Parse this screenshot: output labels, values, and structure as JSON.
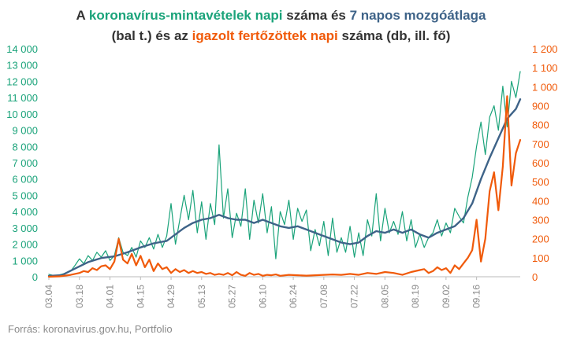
{
  "title": {
    "line1": [
      {
        "text": "A ",
        "color": ""
      },
      {
        "text": "koronavírus-mintavételek napi",
        "color": "green"
      },
      {
        "text": " száma és ",
        "color": ""
      },
      {
        "text": "7 napos mozgóátlaga",
        "color": "blue"
      }
    ],
    "line2": [
      {
        "text": "(bal t.) és az ",
        "color": ""
      },
      {
        "text": "igazolt fertőzöttek napi",
        "color": "orange"
      },
      {
        "text": " száma (db, ill. fő)",
        "color": ""
      }
    ]
  },
  "source": "Forrás: koronavirus.gov.hu, Portfolio",
  "colors": {
    "tests": "#1aa37a",
    "moving_average": "#3e6388",
    "cases": "#f05a0a",
    "text": "#333333",
    "axis": "#bbbbbb"
  },
  "chart_data": {
    "type": "line",
    "x_ticks": [
      "03.04",
      "03.18",
      "04.01",
      "04.15",
      "04.29",
      "05.13",
      "05.27",
      "06.10",
      "06.24",
      "07.08",
      "07.22",
      "08.05",
      "08.19",
      "09.02",
      "09.16"
    ],
    "left_axis": {
      "ylim": [
        0,
        14000
      ],
      "ticks": [
        "0",
        "1 000",
        "2 000",
        "3 000",
        "4 000",
        "5 000",
        "6 000",
        "7 000",
        "8 000",
        "9 000",
        "10 000",
        "11 000",
        "12 000",
        "13 000",
        "14 000"
      ]
    },
    "right_axis": {
      "ylim": [
        0,
        1200
      ],
      "ticks": [
        "0",
        "100",
        "200",
        "300",
        "400",
        "500",
        "600",
        "700",
        "800",
        "900",
        "1 000",
        "1 100",
        "1 200"
      ]
    },
    "series": [
      {
        "key": "tests",
        "axis": "left",
        "points": [
          [
            0,
            150
          ],
          [
            3,
            50
          ],
          [
            7,
            200
          ],
          [
            10,
            350
          ],
          [
            12,
            700
          ],
          [
            14,
            1100
          ],
          [
            16,
            800
          ],
          [
            18,
            1300
          ],
          [
            20,
            1000
          ],
          [
            22,
            1500
          ],
          [
            24,
            1200
          ],
          [
            26,
            1600
          ],
          [
            28,
            1000
          ],
          [
            30,
            1300
          ],
          [
            32,
            2400
          ],
          [
            34,
            1500
          ],
          [
            36,
            1300
          ],
          [
            38,
            1800
          ],
          [
            40,
            1200
          ],
          [
            42,
            2200
          ],
          [
            44,
            1800
          ],
          [
            46,
            2400
          ],
          [
            48,
            1700
          ],
          [
            50,
            2600
          ],
          [
            52,
            1800
          ],
          [
            54,
            2500
          ],
          [
            56,
            4500
          ],
          [
            58,
            2000
          ],
          [
            60,
            3500
          ],
          [
            62,
            5000
          ],
          [
            64,
            3500
          ],
          [
            66,
            5300
          ],
          [
            68,
            2700
          ],
          [
            70,
            4600
          ],
          [
            72,
            2300
          ],
          [
            74,
            4500
          ],
          [
            76,
            3200
          ],
          [
            78,
            8100
          ],
          [
            80,
            3600
          ],
          [
            82,
            5400
          ],
          [
            84,
            2400
          ],
          [
            86,
            3900
          ],
          [
            88,
            3100
          ],
          [
            90,
            5400
          ],
          [
            92,
            2300
          ],
          [
            94,
            4700
          ],
          [
            96,
            3300
          ],
          [
            98,
            5100
          ],
          [
            100,
            2700
          ],
          [
            102,
            4300
          ],
          [
            104,
            1100
          ],
          [
            106,
            4000
          ],
          [
            108,
            3200
          ],
          [
            110,
            4700
          ],
          [
            112,
            2300
          ],
          [
            114,
            4200
          ],
          [
            116,
            3400
          ],
          [
            118,
            4100
          ],
          [
            120,
            1600
          ],
          [
            122,
            2900
          ],
          [
            124,
            1900
          ],
          [
            126,
            3400
          ],
          [
            128,
            1300
          ],
          [
            130,
            3600
          ],
          [
            132,
            1500
          ],
          [
            134,
            2400
          ],
          [
            136,
            1500
          ],
          [
            138,
            3100
          ],
          [
            140,
            1200
          ],
          [
            142,
            2700
          ],
          [
            144,
            1300
          ],
          [
            146,
            3500
          ],
          [
            148,
            2500
          ],
          [
            150,
            5100
          ],
          [
            152,
            2200
          ],
          [
            154,
            4200
          ],
          [
            156,
            2700
          ],
          [
            158,
            3400
          ],
          [
            160,
            2600
          ],
          [
            162,
            4000
          ],
          [
            164,
            2200
          ],
          [
            166,
            3500
          ],
          [
            168,
            1800
          ],
          [
            170,
            2600
          ],
          [
            172,
            1800
          ],
          [
            174,
            2400
          ],
          [
            176,
            2700
          ],
          [
            178,
            3500
          ],
          [
            180,
            2500
          ],
          [
            182,
            3300
          ],
          [
            184,
            2700
          ],
          [
            186,
            4200
          ],
          [
            188,
            3700
          ],
          [
            190,
            3300
          ],
          [
            192,
            4900
          ],
          [
            194,
            6100
          ],
          [
            196,
            8000
          ],
          [
            198,
            9500
          ],
          [
            200,
            7500
          ],
          [
            202,
            9800
          ],
          [
            204,
            10500
          ],
          [
            206,
            9000
          ],
          [
            208,
            11700
          ],
          [
            210,
            9200
          ],
          [
            212,
            12000
          ],
          [
            214,
            11000
          ],
          [
            216,
            12600
          ]
        ]
      },
      {
        "key": "moving_average",
        "axis": "left",
        "points": [
          [
            0,
            50
          ],
          [
            6,
            100
          ],
          [
            12,
            500
          ],
          [
            18,
            900
          ],
          [
            24,
            1150
          ],
          [
            30,
            1250
          ],
          [
            36,
            1500
          ],
          [
            42,
            1800
          ],
          [
            48,
            2050
          ],
          [
            54,
            2200
          ],
          [
            58,
            2600
          ],
          [
            62,
            3000
          ],
          [
            66,
            3300
          ],
          [
            70,
            3500
          ],
          [
            74,
            3600
          ],
          [
            78,
            3800
          ],
          [
            82,
            3600
          ],
          [
            86,
            3500
          ],
          [
            90,
            3500
          ],
          [
            94,
            3300
          ],
          [
            98,
            3500
          ],
          [
            102,
            3300
          ],
          [
            106,
            3100
          ],
          [
            110,
            3000
          ],
          [
            114,
            3100
          ],
          [
            118,
            2900
          ],
          [
            122,
            2700
          ],
          [
            126,
            2500
          ],
          [
            130,
            2300
          ],
          [
            134,
            2100
          ],
          [
            138,
            2000
          ],
          [
            142,
            2100
          ],
          [
            146,
            2500
          ],
          [
            150,
            2800
          ],
          [
            154,
            2700
          ],
          [
            158,
            2900
          ],
          [
            162,
            2700
          ],
          [
            166,
            2900
          ],
          [
            170,
            2600
          ],
          [
            174,
            2400
          ],
          [
            178,
            2700
          ],
          [
            182,
            2900
          ],
          [
            186,
            3100
          ],
          [
            190,
            3600
          ],
          [
            194,
            4500
          ],
          [
            198,
            6000
          ],
          [
            202,
            7300
          ],
          [
            206,
            8500
          ],
          [
            210,
            9700
          ],
          [
            214,
            10300
          ],
          [
            216,
            10900
          ]
        ]
      },
      {
        "key": "cases",
        "axis": "right",
        "points": [
          [
            0,
            0
          ],
          [
            5,
            2
          ],
          [
            10,
            10
          ],
          [
            14,
            20
          ],
          [
            16,
            30
          ],
          [
            18,
            25
          ],
          [
            20,
            45
          ],
          [
            22,
            35
          ],
          [
            24,
            55
          ],
          [
            26,
            60
          ],
          [
            28,
            40
          ],
          [
            30,
            80
          ],
          [
            32,
            200
          ],
          [
            34,
            90
          ],
          [
            36,
            70
          ],
          [
            38,
            120
          ],
          [
            40,
            60
          ],
          [
            42,
            110
          ],
          [
            44,
            50
          ],
          [
            46,
            90
          ],
          [
            48,
            30
          ],
          [
            50,
            70
          ],
          [
            52,
            40
          ],
          [
            54,
            50
          ],
          [
            56,
            20
          ],
          [
            58,
            40
          ],
          [
            60,
            25
          ],
          [
            62,
            35
          ],
          [
            64,
            20
          ],
          [
            66,
            30
          ],
          [
            68,
            20
          ],
          [
            70,
            25
          ],
          [
            72,
            15
          ],
          [
            74,
            20
          ],
          [
            76,
            10
          ],
          [
            78,
            15
          ],
          [
            80,
            10
          ],
          [
            82,
            20
          ],
          [
            84,
            8
          ],
          [
            86,
            25
          ],
          [
            88,
            10
          ],
          [
            90,
            5
          ],
          [
            92,
            20
          ],
          [
            94,
            10
          ],
          [
            96,
            15
          ],
          [
            98,
            5
          ],
          [
            100,
            10
          ],
          [
            102,
            8
          ],
          [
            104,
            12
          ],
          [
            106,
            5
          ],
          [
            110,
            10
          ],
          [
            114,
            8
          ],
          [
            118,
            6
          ],
          [
            122,
            8
          ],
          [
            126,
            10
          ],
          [
            130,
            12
          ],
          [
            134,
            10
          ],
          [
            138,
            15
          ],
          [
            142,
            10
          ],
          [
            146,
            20
          ],
          [
            150,
            15
          ],
          [
            154,
            25
          ],
          [
            158,
            20
          ],
          [
            162,
            10
          ],
          [
            166,
            25
          ],
          [
            170,
            35
          ],
          [
            172,
            40
          ],
          [
            174,
            20
          ],
          [
            176,
            30
          ],
          [
            178,
            50
          ],
          [
            180,
            35
          ],
          [
            182,
            45
          ],
          [
            184,
            20
          ],
          [
            186,
            60
          ],
          [
            188,
            40
          ],
          [
            190,
            70
          ],
          [
            192,
            100
          ],
          [
            194,
            140
          ],
          [
            196,
            300
          ],
          [
            198,
            80
          ],
          [
            200,
            200
          ],
          [
            202,
            450
          ],
          [
            204,
            550
          ],
          [
            206,
            350
          ],
          [
            208,
            580
          ],
          [
            210,
            950
          ],
          [
            212,
            480
          ],
          [
            214,
            650
          ],
          [
            216,
            720
          ]
        ]
      }
    ]
  }
}
